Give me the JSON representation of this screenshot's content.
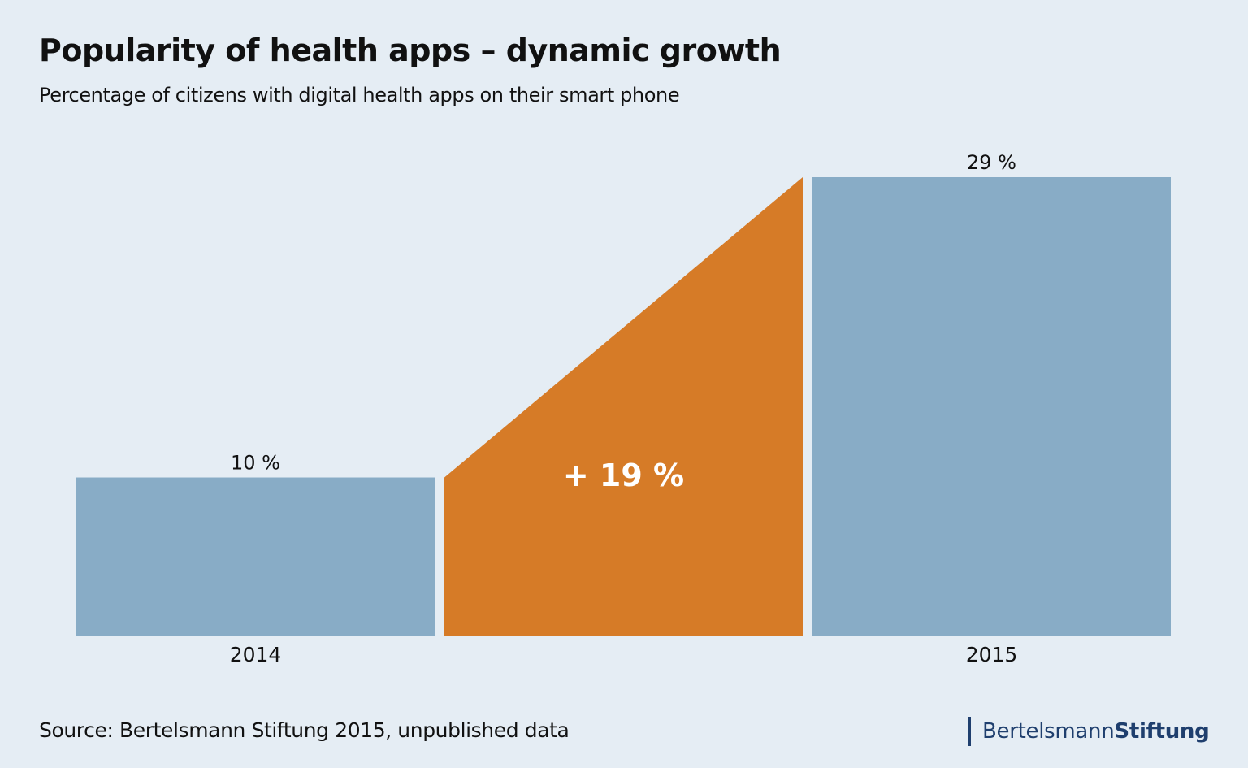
{
  "chart_data": {
    "type": "bar",
    "title": "Popularity of health apps – dynamic growth",
    "subtitle": "Percentage of citizens with digital health apps on their smart phone",
    "categories": [
      "2014",
      "2015"
    ],
    "values": [
      10,
      29
    ],
    "value_labels": [
      "10 %",
      "29 %"
    ],
    "difference": {
      "value": 19,
      "label": "+ 19 %"
    },
    "ylim": [
      0,
      29
    ],
    "grid": false,
    "colors": {
      "bar": "#88acc6",
      "difference": "#d67b27",
      "background": "#e5edf4"
    }
  },
  "source": "Source: Bertelsmann Stiftung 2015, unpublished data",
  "logo": {
    "part1": "Bertelsmann",
    "part2": "Stiftung",
    "color": "#1f3f6e"
  }
}
